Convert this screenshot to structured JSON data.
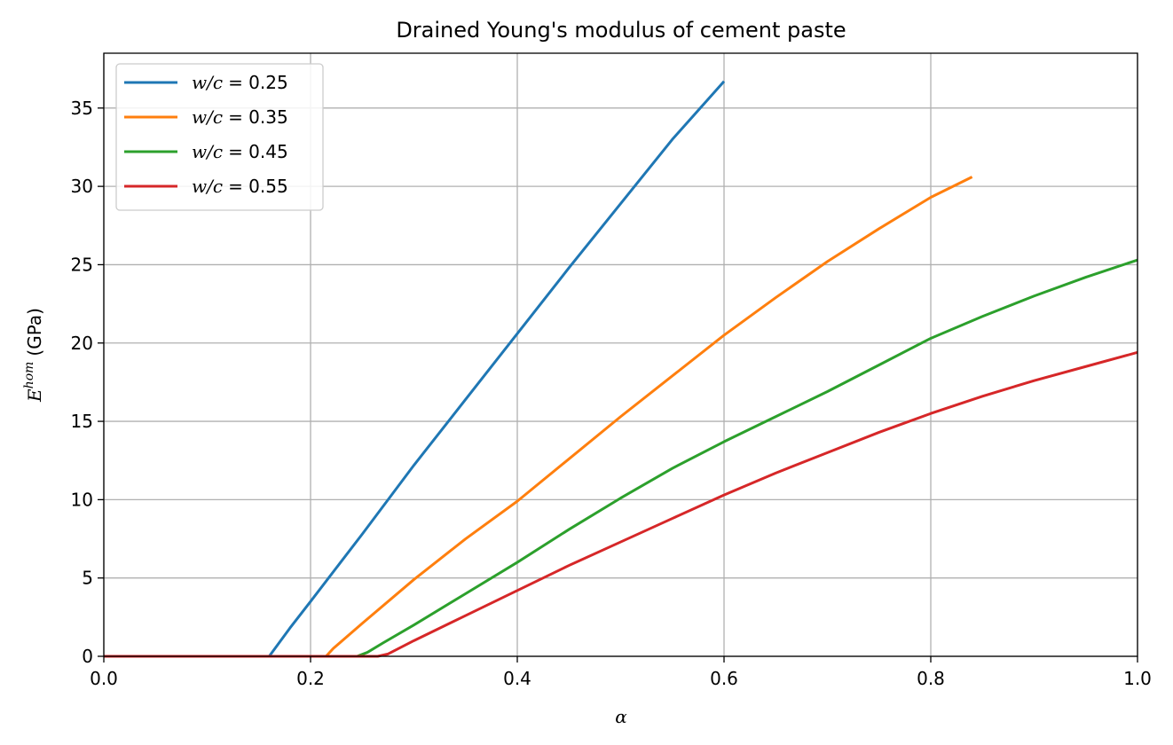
{
  "chart_data": {
    "type": "line",
    "title": "Drained Young's modulus of cement paste",
    "xlabel": "α",
    "ylabel": "E^hom (GPa)",
    "ylabel_main": "E",
    "ylabel_sup": "hom",
    "ylabel_unit": "(GPa)",
    "xlim": [
      0.0,
      1.0
    ],
    "ylim": [
      0,
      38.5
    ],
    "xticks": [
      0.0,
      0.2,
      0.4,
      0.6,
      0.8,
      1.0
    ],
    "xtick_labels": [
      "0.0",
      "0.2",
      "0.4",
      "0.6",
      "0.8",
      "1.0"
    ],
    "yticks": [
      0,
      5,
      10,
      15,
      20,
      25,
      30,
      35
    ],
    "ytick_labels": [
      "0",
      "5",
      "10",
      "15",
      "20",
      "25",
      "30",
      "35"
    ],
    "grid": true,
    "legend_position": "top-left",
    "series": [
      {
        "name": "w/c = 0.25",
        "label_var": "w/c",
        "label_val": "= 0.25",
        "color": "#1f77b4",
        "x": [
          0.0,
          0.16,
          0.18,
          0.2,
          0.25,
          0.3,
          0.35,
          0.4,
          0.45,
          0.5,
          0.55,
          0.6
        ],
        "y": [
          0.0,
          0.0,
          1.8,
          3.5,
          7.8,
          12.2,
          16.4,
          20.6,
          24.8,
          28.9,
          33.0,
          36.7
        ]
      },
      {
        "name": "w/c = 0.35",
        "label_var": "w/c",
        "label_val": "= 0.35",
        "color": "#ff7f0e",
        "x": [
          0.0,
          0.215,
          0.222,
          0.25,
          0.3,
          0.35,
          0.4,
          0.45,
          0.5,
          0.55,
          0.6,
          0.65,
          0.7,
          0.75,
          0.8,
          0.84
        ],
        "y": [
          0.0,
          0.0,
          0.5,
          2.1,
          4.9,
          7.5,
          9.9,
          12.6,
          15.3,
          17.9,
          20.5,
          22.9,
          25.2,
          27.3,
          29.3,
          30.6
        ]
      },
      {
        "name": "w/c = 0.45",
        "label_var": "w/c",
        "label_val": "= 0.45",
        "color": "#2ca02c",
        "x": [
          0.0,
          0.245,
          0.255,
          0.27,
          0.3,
          0.35,
          0.4,
          0.45,
          0.5,
          0.55,
          0.6,
          0.65,
          0.7,
          0.75,
          0.8,
          0.85,
          0.9,
          0.95,
          1.0
        ],
        "y": [
          0.0,
          0.0,
          0.25,
          0.85,
          2.0,
          4.0,
          6.0,
          8.1,
          10.1,
          12.0,
          13.7,
          15.3,
          16.9,
          18.6,
          20.3,
          21.7,
          23.0,
          24.2,
          25.3
        ]
      },
      {
        "name": "w/c = 0.55",
        "label_var": "w/c",
        "label_val": "= 0.55",
        "color": "#d62728",
        "x": [
          0.0,
          0.265,
          0.275,
          0.3,
          0.35,
          0.4,
          0.45,
          0.5,
          0.55,
          0.6,
          0.65,
          0.7,
          0.75,
          0.8,
          0.85,
          0.9,
          0.95,
          1.0
        ],
        "y": [
          0.0,
          0.0,
          0.15,
          1.0,
          2.6,
          4.2,
          5.8,
          7.3,
          8.8,
          10.3,
          11.7,
          13.0,
          14.3,
          15.5,
          16.6,
          17.6,
          18.5,
          19.4
        ]
      }
    ]
  }
}
